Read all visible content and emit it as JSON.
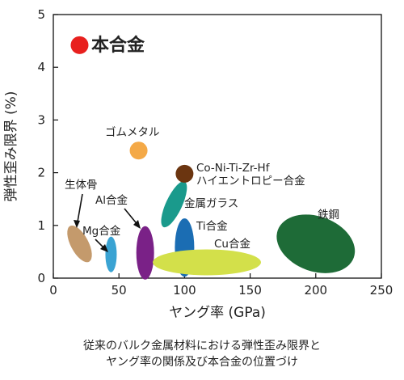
{
  "chart_data": {
    "type": "scatter",
    "title": "",
    "xlabel": "ヤング率 (GPa)",
    "ylabel": "弾性歪み限界 (%)",
    "xlim": [
      0,
      250
    ],
    "ylim": [
      0,
      5
    ],
    "xticks": [
      0,
      50,
      100,
      150,
      200,
      250
    ],
    "yticks": [
      0,
      1,
      2,
      3,
      4,
      5
    ],
    "grid": false,
    "regions": [
      {
        "label": "生体骨",
        "x": 20,
        "y": 0.65,
        "color": "#c49a6c"
      },
      {
        "label": "Mg合金",
        "x": 44,
        "y": 0.45,
        "color": "#3aa3d3"
      },
      {
        "label": "Al合金",
        "x": 70,
        "y": 0.48,
        "color": "#7a2187"
      },
      {
        "label": "金属ガラス",
        "x": 92,
        "y": 1.4,
        "color": "#1a9a8c"
      },
      {
        "label": "Ti合金",
        "x": 100,
        "y": 0.58,
        "color": "#1b6db3"
      },
      {
        "label": "Cu合金",
        "x": 117,
        "y": 0.3,
        "color": "#d3e04a"
      },
      {
        "label": "鉄鋼",
        "x": 200,
        "y": 0.65,
        "color": "#1e6b37"
      }
    ],
    "points": [
      {
        "label": "ゴムメタル",
        "x": 65,
        "y": 2.42,
        "color": "#f4a947"
      },
      {
        "label": "Co-Ni-Ti-Zr-Hf\nハイエントロピー合金",
        "x": 100,
        "y": 1.98,
        "color": "#6b3510"
      },
      {
        "label": "本合金",
        "x": 20,
        "y": 4.42,
        "color": "#e8201e"
      }
    ]
  },
  "caption": {
    "line1": "従来のバルク金属材料における弾性歪み限界と",
    "line2": "ヤング率の関係及び本合金の位置づけ"
  }
}
